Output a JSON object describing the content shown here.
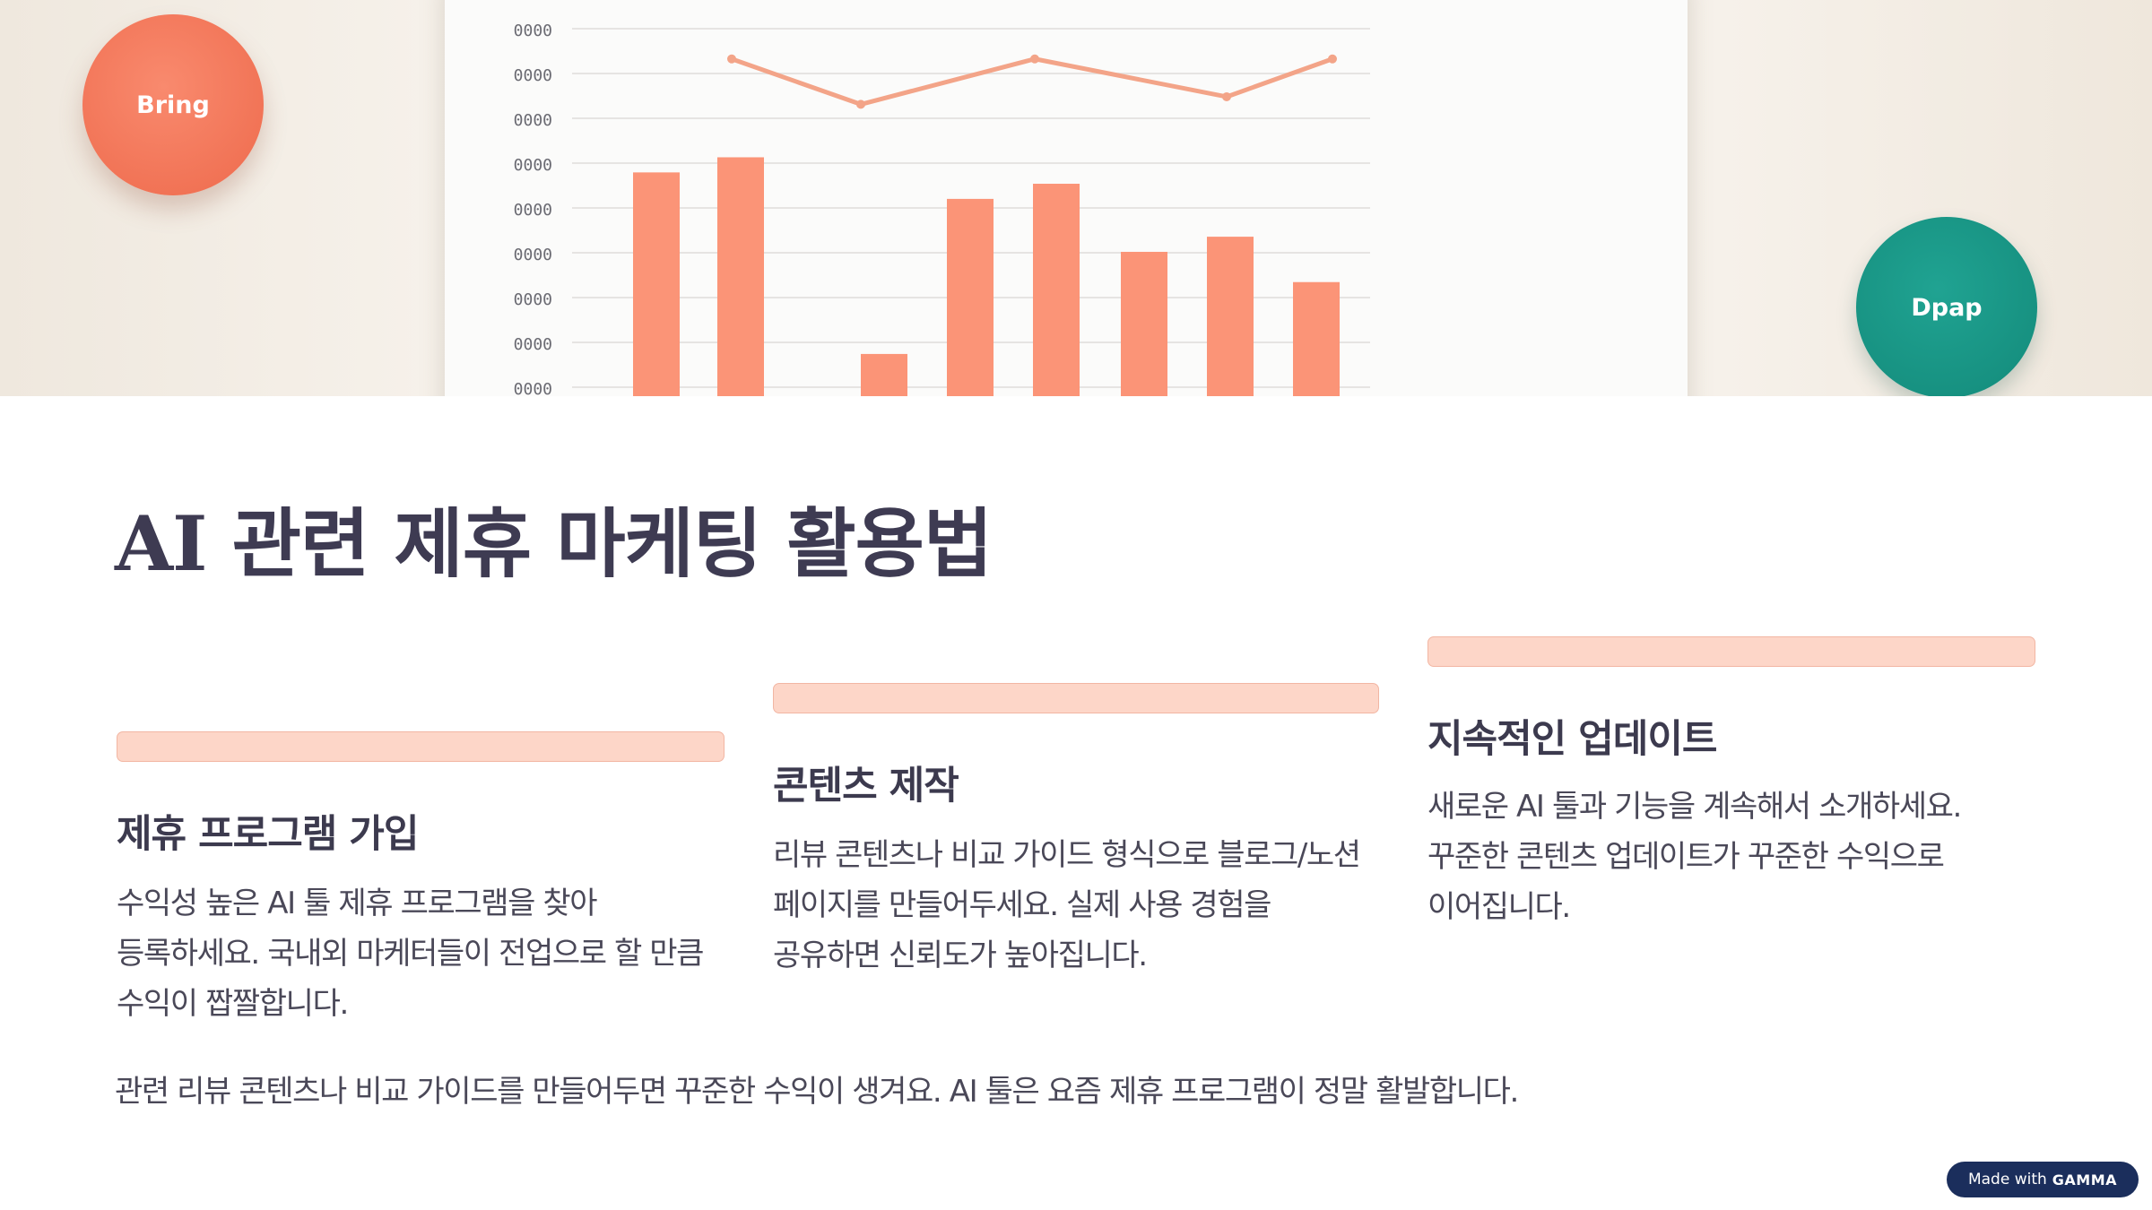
{
  "hero": {
    "bubble_left_label": "Bring",
    "bubble_right_label": "Dpap",
    "chart_data": {
      "type": "bar",
      "title": "",
      "y_tick_labels": [
        "0000",
        "0000",
        "0000",
        "0000",
        "0000",
        "0000",
        "0000",
        "0000",
        "0000"
      ],
      "values": [
        62,
        66,
        14,
        55,
        59,
        41,
        45,
        33
      ],
      "line_values": [
        92,
        80,
        92,
        82,
        92
      ],
      "ylim": [
        0,
        100
      ],
      "grid": true,
      "colors": {
        "bar": "#fb9477",
        "line": "#f3a488"
      }
    }
  },
  "page": {
    "title": "AI 관련 제휴 마케팅 활용법"
  },
  "cards": [
    {
      "heading": "제휴 프로그램 가입",
      "body": "수익성 높은 AI 툴 제휴 프로그램을 찾아 등록하세요. 국내외 마케터들이 전업으로 할 만큼 수익이 짭짤합니다."
    },
    {
      "heading": "콘텐츠 제작",
      "body": "리뷰 콘텐츠나 비교 가이드 형식으로 블로그/노션 페이지를 만들어두세요. 실제 사용 경험을 공유하면 신뢰도가 높아집니다."
    },
    {
      "heading": "지속적인 업데이트",
      "body": "새로운 AI 툴과 기능을 계속해서 소개하세요. 꾸준한 콘텐츠 업데이트가 꾸준한 수익으로 이어집니다."
    }
  ],
  "footer": {
    "text": "관련 리뷰 콘텐츠나 비교 가이드를 만들어두면 꾸준한 수익이 생겨요. AI 툴은 요즘 제휴 프로그램이 정말 활발합니다."
  },
  "badge": {
    "prefix": "Made with",
    "brand": "GAMMA"
  },
  "colors": {
    "accent_bar": "#fdd6c8",
    "title": "#3e3b52",
    "badge_bg": "#1b2e5c"
  }
}
